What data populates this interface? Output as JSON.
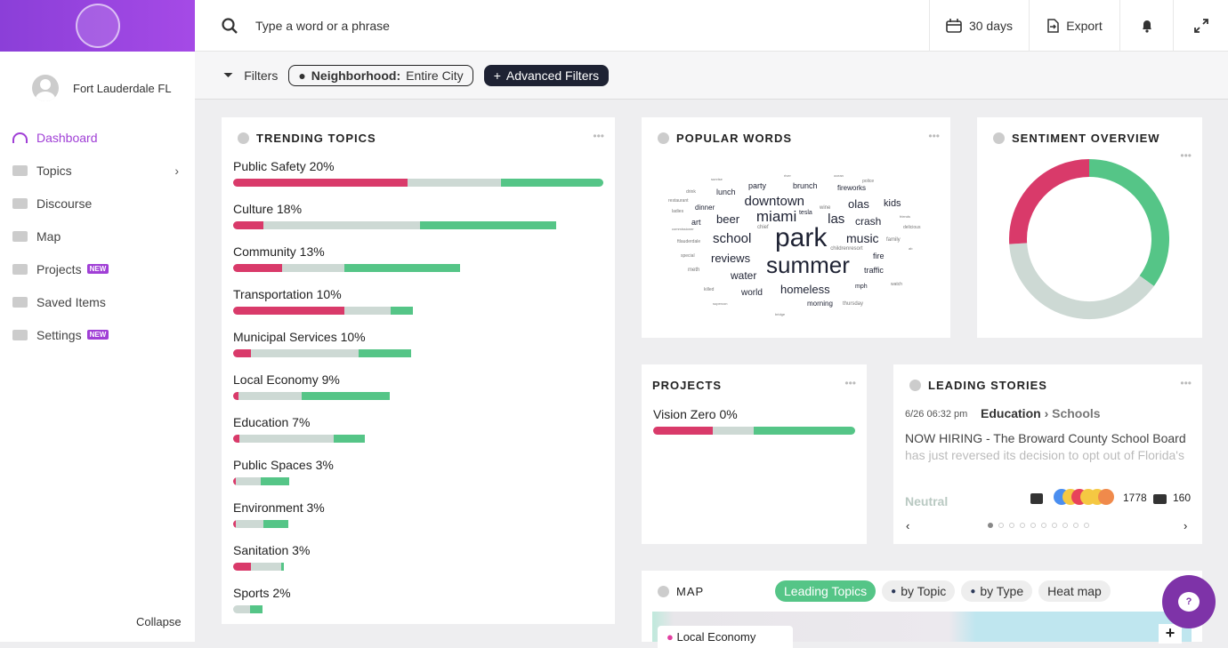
{
  "header": {
    "search_placeholder": "Type a word or a phrase",
    "range": "30 days",
    "export": "Export"
  },
  "sidebar": {
    "user": "Fort Lauderdale FL",
    "items": [
      {
        "label": "Dashboard"
      },
      {
        "label": "Topics"
      },
      {
        "label": "Discourse"
      },
      {
        "label": "Map"
      },
      {
        "label": "Projects",
        "badge": "NEW"
      },
      {
        "label": "Saved Items"
      },
      {
        "label": "Settings",
        "badge": "NEW"
      }
    ],
    "collapse": "Collapse"
  },
  "filters": {
    "label": "Filters",
    "neighborhood_key": "Neighborhood:",
    "neighborhood_value": "Entire City",
    "advanced": "Advanced Filters"
  },
  "colors": {
    "negative": "#d93a6a",
    "neutral": "#cdd9d4",
    "positive": "#55c587",
    "accent": "#a03fd6"
  },
  "trending": {
    "title": "TRENDING TOPICS",
    "items": [
      {
        "label": "Public Safety 20%",
        "neg": 47.1,
        "neu": 25.2,
        "pos": 27.6
      },
      {
        "label": "Culture 18%",
        "neg": 8.2,
        "neu": 42.3,
        "pos": 36.8
      },
      {
        "label": "Community 13%",
        "neg": 13.2,
        "neu": 16.8,
        "pos": 31.3
      },
      {
        "label": "Transportation 10%",
        "neg": 30,
        "neu": 12.5,
        "pos": 6
      },
      {
        "label": "Municipal Services 10%",
        "neg": 4.8,
        "neu": 29.1,
        "pos": 14.2
      },
      {
        "label": "Local Economy 9%",
        "neg": 1.4,
        "neu": 17.1,
        "pos": 23.8
      },
      {
        "label": "Education 7%",
        "neg": 1.7,
        "neu": 25.5,
        "pos": 8.4
      },
      {
        "label": "Public Spaces 3%",
        "neg": 0.7,
        "neu": 6.7,
        "pos": 7.7
      },
      {
        "label": "Environment 3%",
        "neg": 0.7,
        "neu": 7.5,
        "pos": 6.7
      },
      {
        "label": "Sanitation 3%",
        "neg": 4.8,
        "neu": 8.2,
        "pos": 0.7
      },
      {
        "label": "Sports 2%",
        "neg": 0,
        "neu": 4.6,
        "pos": 3.4
      }
    ]
  },
  "popular_words": {
    "title": "POPULAR WORDS",
    "words": [
      "park",
      "summer",
      "miami",
      "downtown",
      "school",
      "music",
      "homeless",
      "reviews",
      "beer",
      "las",
      "olas",
      "kids",
      "crash",
      "water",
      "world",
      "morning",
      "thursday",
      "party",
      "brunch",
      "lunch",
      "fireworks",
      "art",
      "dinner",
      "fire",
      "traffic",
      "mph",
      "tesla",
      "chief",
      "wine",
      "childrenresort",
      "meth",
      "family",
      "special",
      "ftlauderdale",
      "commissioner",
      "ladies",
      "restaurant",
      "drink",
      "sunrise",
      "river",
      "ocean",
      "police",
      "friends",
      "delicious",
      "ab",
      "watch",
      "killed",
      "supercon",
      "bridge"
    ]
  },
  "sentiment": {
    "title": "SENTIMENT OVERVIEW",
    "positive": 35,
    "neutral": 39,
    "negative": 26
  },
  "projects": {
    "title": "PROJECTS",
    "items": [
      {
        "label": "Vision Zero 0%",
        "neg": 29.5,
        "neu": 20.3,
        "pos": 50.2
      }
    ]
  },
  "stories": {
    "title": "LEADING STORIES",
    "time": "6/26 06:32 pm",
    "category": "Education",
    "subcategory": "Schools",
    "line1": "NOW HIRING - The Broward County School Board",
    "line2": "has just reversed its decision to opt out of Florida's",
    "sentiment": "Neutral",
    "reactions": "1778",
    "comments": "160",
    "page": 1,
    "pages": 10
  },
  "map": {
    "title": "MAP",
    "tabs": [
      "Leading Topics",
      "by Topic",
      "by Type",
      "Heat map"
    ],
    "legend": "Local Economy",
    "zoom_in": "+"
  }
}
